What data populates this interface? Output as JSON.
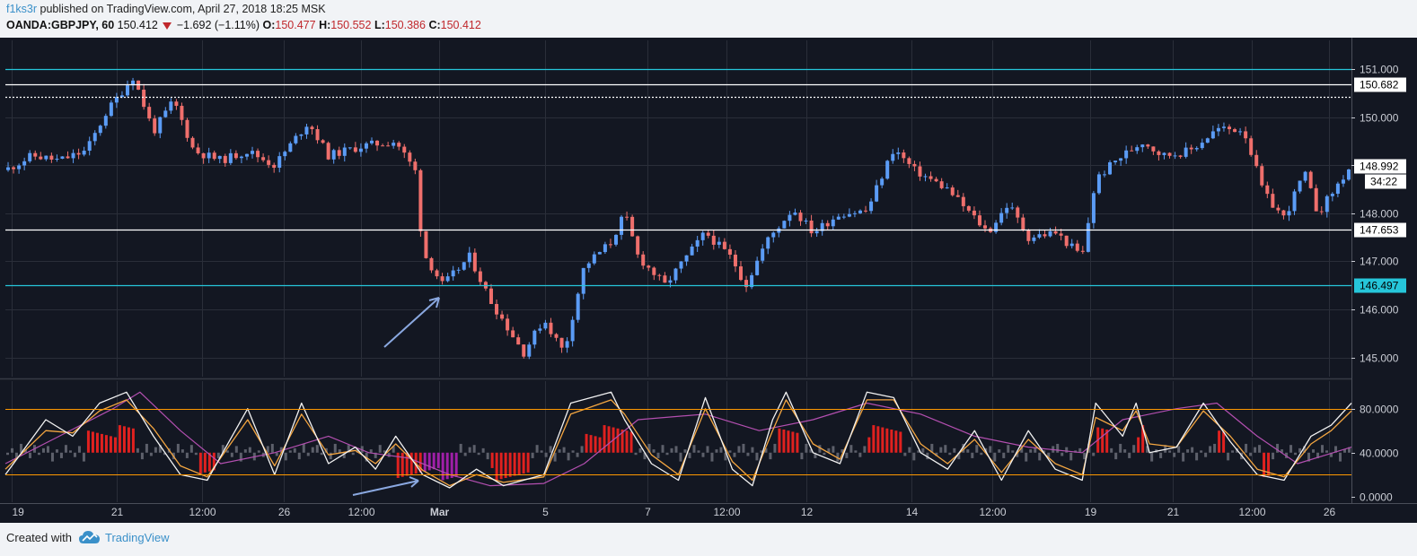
{
  "header": {
    "author": "f1ks3r",
    "published_text": "published on TradingView.com, April 27, 2018 18:25 MSK",
    "symbol": "OANDA:GBPJPY, 60",
    "last": "150.412",
    "change": "−1.692 (−1.11%)",
    "o_label": "O:",
    "o_value": "150.477",
    "h_label": "H:",
    "h_value": "150.552",
    "l_label": "L:",
    "l_value": "150.386",
    "c_label": "C:",
    "c_value": "150.412"
  },
  "footer": {
    "created_with": "Created with",
    "brand": "TradingView"
  },
  "colors": {
    "background": "#131722",
    "bull": "#5b9cf6",
    "bear": "#ef6f6c",
    "cyan_line": "#26c6da",
    "white_line": "#ffffff",
    "orange_line": "#ff9800",
    "hist_red": "#e0211f",
    "hist_purple": "#a01fa8",
    "hist_grey": "#5d606b",
    "stoch_k": "#f2f2f2",
    "stoch_d": "#f4a641",
    "slow_line": "#b34fb0",
    "arrow": "#8aa8e0"
  },
  "chart_data": {
    "type": "candlestick",
    "symbol": "OANDA:GBPJPY",
    "interval": "60",
    "price_axis": {
      "ylim": [
        144.6,
        151.6
      ],
      "ticks": [
        "151.000",
        "150.000",
        "149.000",
        "148.000",
        "147.000",
        "146.000",
        "145.000"
      ]
    },
    "horizontal_levels": [
      {
        "price": 151.0,
        "color": "cyan",
        "label": "151.000"
      },
      {
        "price": 150.682,
        "color": "white",
        "label": "150.682"
      },
      {
        "price": 150.42,
        "color": "white",
        "style": "dotted",
        "label": ""
      },
      {
        "price": 147.653,
        "color": "white",
        "label": "147.653"
      },
      {
        "price": 146.497,
        "color": "cyan",
        "label": "146.497"
      }
    ],
    "last_price_label": "148.992",
    "countdown_label": "34:22",
    "close_path": [
      {
        "x": 0.0,
        "y": 148.9
      },
      {
        "x": 0.02,
        "y": 149.2
      },
      {
        "x": 0.04,
        "y": 149.1
      },
      {
        "x": 0.06,
        "y": 149.3
      },
      {
        "x": 0.075,
        "y": 150.1
      },
      {
        "x": 0.095,
        "y": 150.85
      },
      {
        "x": 0.11,
        "y": 149.7
      },
      {
        "x": 0.125,
        "y": 150.35
      },
      {
        "x": 0.14,
        "y": 149.3
      },
      {
        "x": 0.16,
        "y": 149.1
      },
      {
        "x": 0.18,
        "y": 149.3
      },
      {
        "x": 0.2,
        "y": 149.0
      },
      {
        "x": 0.225,
        "y": 149.9
      },
      {
        "x": 0.24,
        "y": 149.2
      },
      {
        "x": 0.265,
        "y": 149.4
      },
      {
        "x": 0.29,
        "y": 149.5
      },
      {
        "x": 0.305,
        "y": 148.85
      },
      {
        "x": 0.31,
        "y": 147.2
      },
      {
        "x": 0.325,
        "y": 146.5
      },
      {
        "x": 0.345,
        "y": 147.1
      },
      {
        "x": 0.36,
        "y": 146.2
      },
      {
        "x": 0.385,
        "y": 145.1
      },
      {
        "x": 0.4,
        "y": 145.8
      },
      {
        "x": 0.415,
        "y": 145.1
      },
      {
        "x": 0.43,
        "y": 146.9
      },
      {
        "x": 0.45,
        "y": 147.4
      },
      {
        "x": 0.46,
        "y": 148.0
      },
      {
        "x": 0.47,
        "y": 147.1
      },
      {
        "x": 0.49,
        "y": 146.5
      },
      {
        "x": 0.52,
        "y": 147.6
      },
      {
        "x": 0.54,
        "y": 147.05
      },
      {
        "x": 0.55,
        "y": 146.5
      },
      {
        "x": 0.565,
        "y": 147.4
      },
      {
        "x": 0.585,
        "y": 148.1
      },
      {
        "x": 0.6,
        "y": 147.6
      },
      {
        "x": 0.62,
        "y": 148.0
      },
      {
        "x": 0.64,
        "y": 148.05
      },
      {
        "x": 0.66,
        "y": 149.35
      },
      {
        "x": 0.675,
        "y": 148.9
      },
      {
        "x": 0.7,
        "y": 148.5
      },
      {
        "x": 0.715,
        "y": 148.05
      },
      {
        "x": 0.73,
        "y": 147.6
      },
      {
        "x": 0.745,
        "y": 148.2
      },
      {
        "x": 0.76,
        "y": 147.5
      },
      {
        "x": 0.78,
        "y": 147.6
      },
      {
        "x": 0.8,
        "y": 147.1
      },
      {
        "x": 0.81,
        "y": 148.7
      },
      {
        "x": 0.825,
        "y": 149.1
      },
      {
        "x": 0.845,
        "y": 149.5
      },
      {
        "x": 0.86,
        "y": 149.2
      },
      {
        "x": 0.88,
        "y": 149.3
      },
      {
        "x": 0.9,
        "y": 149.75
      },
      {
        "x": 0.92,
        "y": 149.75
      },
      {
        "x": 0.935,
        "y": 148.4
      },
      {
        "x": 0.95,
        "y": 147.9
      },
      {
        "x": 0.965,
        "y": 148.85
      },
      {
        "x": 0.975,
        "y": 148.0
      },
      {
        "x": 0.99,
        "y": 148.6
      },
      {
        "x": 1.0,
        "y": 148.99
      }
    ],
    "candle_count": 248,
    "x_axis_labels": [
      {
        "label": "19",
        "pos": 0.005
      },
      {
        "label": "21",
        "pos": 0.083
      },
      {
        "label": "12:00",
        "pos": 0.146
      },
      {
        "label": "26",
        "pos": 0.207
      },
      {
        "label": "12:00",
        "pos": 0.264
      },
      {
        "label": "Mar",
        "pos": 0.322
      },
      {
        "label": "5",
        "pos": 0.401
      },
      {
        "label": "7",
        "pos": 0.477
      },
      {
        "label": "12:00",
        "pos": 0.536
      },
      {
        "label": "12",
        "pos": 0.595
      },
      {
        "label": "14",
        "pos": 0.673
      },
      {
        "label": "12:00",
        "pos": 0.733
      },
      {
        "label": "19",
        "pos": 0.806
      },
      {
        "label": "21",
        "pos": 0.867
      },
      {
        "label": "12:00",
        "pos": 0.926
      },
      {
        "label": "26",
        "pos": 0.983
      }
    ],
    "oscillator": {
      "ylim": [
        -5,
        105
      ],
      "ticks": [
        "80.0000",
        "40.0000",
        "0.0000"
      ],
      "upper_band": 80,
      "lower_band": 20,
      "k_path": [
        {
          "x": 0.0,
          "y": 20
        },
        {
          "x": 0.03,
          "y": 70
        },
        {
          "x": 0.05,
          "y": 55
        },
        {
          "x": 0.07,
          "y": 85
        },
        {
          "x": 0.09,
          "y": 95
        },
        {
          "x": 0.11,
          "y": 55
        },
        {
          "x": 0.13,
          "y": 20
        },
        {
          "x": 0.15,
          "y": 15
        },
        {
          "x": 0.18,
          "y": 80
        },
        {
          "x": 0.2,
          "y": 20
        },
        {
          "x": 0.22,
          "y": 85
        },
        {
          "x": 0.24,
          "y": 30
        },
        {
          "x": 0.26,
          "y": 45
        },
        {
          "x": 0.275,
          "y": 25
        },
        {
          "x": 0.29,
          "y": 55
        },
        {
          "x": 0.31,
          "y": 20
        },
        {
          "x": 0.33,
          "y": 8
        },
        {
          "x": 0.35,
          "y": 25
        },
        {
          "x": 0.37,
          "y": 10
        },
        {
          "x": 0.4,
          "y": 20
        },
        {
          "x": 0.42,
          "y": 85
        },
        {
          "x": 0.45,
          "y": 95
        },
        {
          "x": 0.46,
          "y": 70
        },
        {
          "x": 0.48,
          "y": 30
        },
        {
          "x": 0.5,
          "y": 15
        },
        {
          "x": 0.52,
          "y": 90
        },
        {
          "x": 0.54,
          "y": 25
        },
        {
          "x": 0.555,
          "y": 10
        },
        {
          "x": 0.57,
          "y": 70
        },
        {
          "x": 0.58,
          "y": 95
        },
        {
          "x": 0.6,
          "y": 40
        },
        {
          "x": 0.62,
          "y": 30
        },
        {
          "x": 0.64,
          "y": 95
        },
        {
          "x": 0.66,
          "y": 90
        },
        {
          "x": 0.68,
          "y": 40
        },
        {
          "x": 0.7,
          "y": 25
        },
        {
          "x": 0.72,
          "y": 60
        },
        {
          "x": 0.74,
          "y": 15
        },
        {
          "x": 0.76,
          "y": 60
        },
        {
          "x": 0.78,
          "y": 25
        },
        {
          "x": 0.8,
          "y": 15
        },
        {
          "x": 0.81,
          "y": 85
        },
        {
          "x": 0.83,
          "y": 55
        },
        {
          "x": 0.84,
          "y": 85
        },
        {
          "x": 0.85,
          "y": 40
        },
        {
          "x": 0.87,
          "y": 45
        },
        {
          "x": 0.89,
          "y": 85
        },
        {
          "x": 0.91,
          "y": 50
        },
        {
          "x": 0.93,
          "y": 20
        },
        {
          "x": 0.95,
          "y": 15
        },
        {
          "x": 0.97,
          "y": 55
        },
        {
          "x": 0.985,
          "y": 65
        },
        {
          "x": 1.0,
          "y": 85
        }
      ],
      "d_path": [
        {
          "x": 0.0,
          "y": 25
        },
        {
          "x": 0.03,
          "y": 60
        },
        {
          "x": 0.05,
          "y": 58
        },
        {
          "x": 0.07,
          "y": 78
        },
        {
          "x": 0.09,
          "y": 88
        },
        {
          "x": 0.11,
          "y": 62
        },
        {
          "x": 0.13,
          "y": 28
        },
        {
          "x": 0.15,
          "y": 18
        },
        {
          "x": 0.18,
          "y": 70
        },
        {
          "x": 0.2,
          "y": 28
        },
        {
          "x": 0.22,
          "y": 75
        },
        {
          "x": 0.24,
          "y": 38
        },
        {
          "x": 0.26,
          "y": 42
        },
        {
          "x": 0.275,
          "y": 30
        },
        {
          "x": 0.29,
          "y": 48
        },
        {
          "x": 0.31,
          "y": 24
        },
        {
          "x": 0.33,
          "y": 10
        },
        {
          "x": 0.35,
          "y": 20
        },
        {
          "x": 0.37,
          "y": 13
        },
        {
          "x": 0.4,
          "y": 18
        },
        {
          "x": 0.42,
          "y": 75
        },
        {
          "x": 0.45,
          "y": 88
        },
        {
          "x": 0.46,
          "y": 75
        },
        {
          "x": 0.48,
          "y": 38
        },
        {
          "x": 0.5,
          "y": 20
        },
        {
          "x": 0.52,
          "y": 80
        },
        {
          "x": 0.54,
          "y": 32
        },
        {
          "x": 0.555,
          "y": 15
        },
        {
          "x": 0.57,
          "y": 60
        },
        {
          "x": 0.58,
          "y": 88
        },
        {
          "x": 0.6,
          "y": 48
        },
        {
          "x": 0.62,
          "y": 34
        },
        {
          "x": 0.64,
          "y": 88
        },
        {
          "x": 0.66,
          "y": 88
        },
        {
          "x": 0.68,
          "y": 48
        },
        {
          "x": 0.7,
          "y": 30
        },
        {
          "x": 0.72,
          "y": 52
        },
        {
          "x": 0.74,
          "y": 22
        },
        {
          "x": 0.76,
          "y": 52
        },
        {
          "x": 0.78,
          "y": 30
        },
        {
          "x": 0.8,
          "y": 20
        },
        {
          "x": 0.81,
          "y": 72
        },
        {
          "x": 0.83,
          "y": 60
        },
        {
          "x": 0.84,
          "y": 78
        },
        {
          "x": 0.85,
          "y": 48
        },
        {
          "x": 0.87,
          "y": 45
        },
        {
          "x": 0.89,
          "y": 78
        },
        {
          "x": 0.91,
          "y": 55
        },
        {
          "x": 0.93,
          "y": 25
        },
        {
          "x": 0.95,
          "y": 18
        },
        {
          "x": 0.97,
          "y": 48
        },
        {
          "x": 0.985,
          "y": 60
        },
        {
          "x": 1.0,
          "y": 78
        }
      ],
      "slow_path": [
        {
          "x": 0.0,
          "y": 30
        },
        {
          "x": 0.04,
          "y": 55
        },
        {
          "x": 0.08,
          "y": 80
        },
        {
          "x": 0.1,
          "y": 95
        },
        {
          "x": 0.13,
          "y": 60
        },
        {
          "x": 0.16,
          "y": 30
        },
        {
          "x": 0.2,
          "y": 40
        },
        {
          "x": 0.24,
          "y": 55
        },
        {
          "x": 0.27,
          "y": 40
        },
        {
          "x": 0.3,
          "y": 35
        },
        {
          "x": 0.33,
          "y": 20
        },
        {
          "x": 0.36,
          "y": 10
        },
        {
          "x": 0.4,
          "y": 12
        },
        {
          "x": 0.43,
          "y": 30
        },
        {
          "x": 0.47,
          "y": 70
        },
        {
          "x": 0.52,
          "y": 75
        },
        {
          "x": 0.56,
          "y": 60
        },
        {
          "x": 0.6,
          "y": 70
        },
        {
          "x": 0.64,
          "y": 85
        },
        {
          "x": 0.68,
          "y": 75
        },
        {
          "x": 0.72,
          "y": 55
        },
        {
          "x": 0.76,
          "y": 45
        },
        {
          "x": 0.8,
          "y": 40
        },
        {
          "x": 0.83,
          "y": 70
        },
        {
          "x": 0.87,
          "y": 80
        },
        {
          "x": 0.9,
          "y": 85
        },
        {
          "x": 0.93,
          "y": 55
        },
        {
          "x": 0.96,
          "y": 30
        },
        {
          "x": 1.0,
          "y": 45
        }
      ],
      "histogram_red_zones": [
        {
          "from": 0.06,
          "to": 0.095,
          "sign": 1
        },
        {
          "from": 0.145,
          "to": 0.155,
          "sign": -1
        },
        {
          "from": 0.29,
          "to": 0.335,
          "sign": -1
        },
        {
          "from": 0.36,
          "to": 0.39,
          "sign": -1
        },
        {
          "from": 0.43,
          "to": 0.465,
          "sign": 1
        },
        {
          "from": 0.575,
          "to": 0.59,
          "sign": 1
        },
        {
          "from": 0.64,
          "to": 0.665,
          "sign": 1
        },
        {
          "from": 0.81,
          "to": 0.82,
          "sign": 1
        },
        {
          "from": 0.84,
          "to": 0.845,
          "sign": 1
        },
        {
          "from": 0.9,
          "to": 0.905,
          "sign": 1
        },
        {
          "from": 0.935,
          "to": 0.94,
          "sign": -1
        }
      ],
      "histogram_purple_zone": {
        "from": 0.31,
        "to": 0.335
      }
    }
  }
}
